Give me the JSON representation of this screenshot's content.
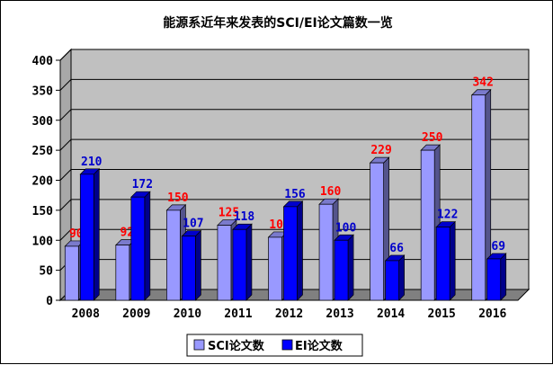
{
  "chart_data": {
    "type": "bar",
    "title": "能源系近年来发表的SCI/EI论文篇数一览",
    "categories": [
      "2008",
      "2009",
      "2010",
      "2011",
      "2012",
      "2013",
      "2014",
      "2015",
      "2016"
    ],
    "series": [
      {
        "name": "SCI论文数",
        "values": [
          90,
          92,
          150,
          125,
          105,
          160,
          229,
          250,
          342
        ],
        "color": "#9999ff",
        "label_color": "#ff0000"
      },
      {
        "name": "EI论文数",
        "values": [
          210,
          172,
          107,
          118,
          156,
          100,
          66,
          122,
          69
        ],
        "color": "#0000ff",
        "label_color": "#0000cc"
      }
    ],
    "ylim": [
      0,
      400
    ],
    "yticks": [
      0,
      50,
      100,
      150,
      200,
      250,
      300,
      350,
      400
    ],
    "grid": true,
    "legend_position": "bottom",
    "style": "3d-bar",
    "plot_background": "#c0c0c0",
    "floor_color": "#808080"
  }
}
